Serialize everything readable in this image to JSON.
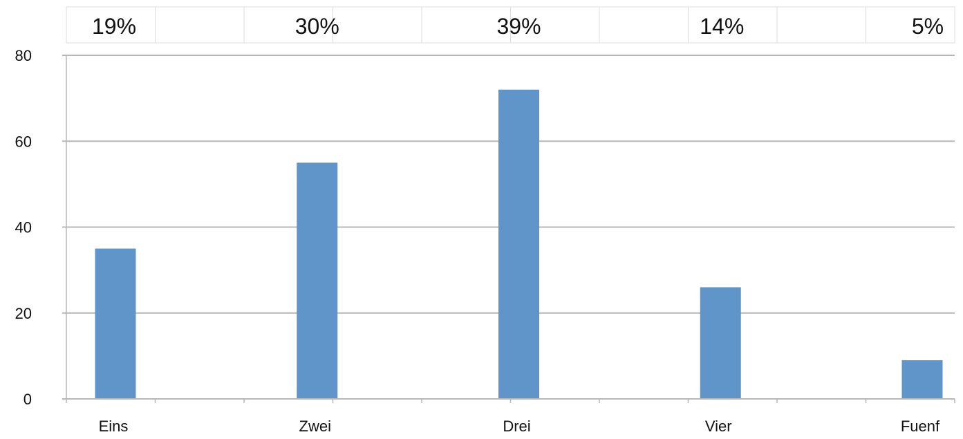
{
  "chart_data": {
    "type": "bar",
    "categories": [
      "Eins",
      "Zwei",
      "Drei",
      "Vier",
      "Fuenf"
    ],
    "values": [
      35,
      55,
      72,
      26,
      9
    ],
    "percent_labels": [
      "19%",
      "30%",
      "39%",
      "14%",
      "5%"
    ],
    "title": "",
    "xlabel": "",
    "ylabel": "",
    "ylim": [
      0,
      80
    ],
    "yticks": [
      "0",
      "20",
      "40",
      "60",
      "80"
    ],
    "grid": true,
    "legend": "none",
    "colors": {
      "bar": "#5f95c8",
      "grid": "#b7b7b7",
      "table_border": "#dcdcdc"
    }
  }
}
